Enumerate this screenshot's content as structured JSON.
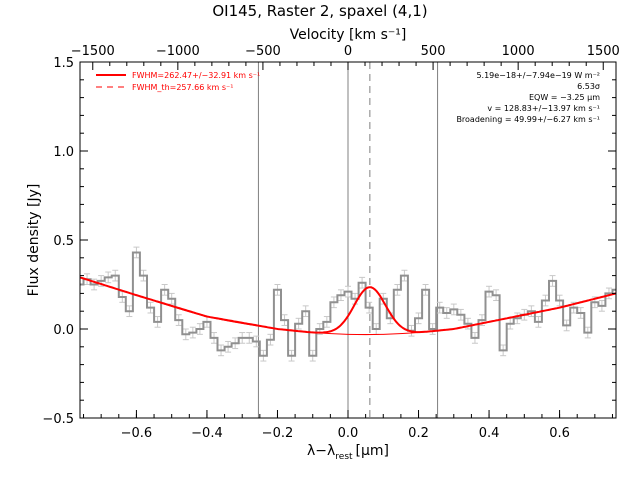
{
  "chart_data": {
    "type": "line",
    "title": "OI145, Raster 2, spaxel (4,1)",
    "xlabel": "λ−λrest [μm]",
    "xlabel_main": "λ−λ",
    "xlabel_sub": "rest",
    "xlabel_unit": "[μm]",
    "ylabel": "Flux density [Jy]",
    "top_xlabel": "Velocity [km s⁻¹]",
    "xlim": [
      -0.76,
      0.76
    ],
    "ylim": [
      -0.5,
      1.5
    ],
    "top_xlim": [
      -1575,
      1575
    ],
    "x_ticks": [
      -0.6,
      -0.4,
      -0.2,
      0.0,
      0.2,
      0.4,
      0.6
    ],
    "x_tick_labels": [
      "−0.6",
      "−0.4",
      "−0.2",
      "0.0",
      "0.2",
      "0.4",
      "0.6"
    ],
    "y_ticks": [
      -0.5,
      0.0,
      0.5,
      1.0,
      1.5
    ],
    "y_tick_labels": [
      "−0.5",
      "0.0",
      "0.5",
      "1.0",
      "1.5"
    ],
    "top_ticks": [
      -1500,
      -1000,
      -500,
      0,
      500,
      1000,
      1500
    ],
    "top_tick_labels": [
      "−1500",
      "−1000",
      "−500",
      "0",
      "500",
      "1000",
      "1500"
    ],
    "vertical_lines": [
      -0.254,
      0.0,
      0.254
    ],
    "dashed_vertical_line": 0.062,
    "legend": {
      "placement": "top-left",
      "entries": [
        "FWHM=262.47+/−32.91 km s⁻¹",
        "FWHM_th=257.66 km s⁻¹"
      ]
    },
    "annotations": [
      "5.19e−18+/−7.94e−19 W m⁻²",
      "6.53σ",
      "EQW = −3.25 μm",
      "v = 128.83+/−13.97 km s⁻¹",
      "Broadening = 49.99+/−6.27 km s⁻¹"
    ],
    "series": [
      {
        "kind": "spectrum",
        "x": [
          -0.76,
          -0.74,
          -0.72,
          -0.7,
          -0.68,
          -0.66,
          -0.64,
          -0.62,
          -0.6,
          -0.58,
          -0.56,
          -0.54,
          -0.52,
          -0.5,
          -0.48,
          -0.46,
          -0.44,
          -0.42,
          -0.4,
          -0.38,
          -0.36,
          -0.34,
          -0.32,
          -0.3,
          -0.28,
          -0.26,
          -0.24,
          -0.22,
          -0.2,
          -0.18,
          -0.16,
          -0.14,
          -0.12,
          -0.1,
          -0.08,
          -0.06,
          -0.04,
          -0.02,
          0.0,
          0.02,
          0.04,
          0.06,
          0.08,
          0.1,
          0.12,
          0.14,
          0.16,
          0.18,
          0.2,
          0.22,
          0.24,
          0.26,
          0.28,
          0.3,
          0.32,
          0.34,
          0.36,
          0.38,
          0.4,
          0.42,
          0.44,
          0.46,
          0.48,
          0.5,
          0.52,
          0.54,
          0.56,
          0.58,
          0.6,
          0.62,
          0.64,
          0.66,
          0.68,
          0.7,
          0.72,
          0.74,
          0.76
        ],
        "values": [
          0.25,
          0.28,
          0.25,
          0.27,
          0.29,
          0.3,
          0.18,
          0.1,
          0.43,
          0.3,
          0.12,
          0.04,
          0.22,
          0.17,
          0.05,
          -0.03,
          -0.02,
          0.0,
          0.04,
          -0.05,
          -0.12,
          -0.1,
          -0.08,
          -0.05,
          -0.05,
          -0.07,
          -0.15,
          -0.06,
          0.22,
          0.05,
          -0.15,
          0.03,
          0.1,
          -0.15,
          0.0,
          0.04,
          0.15,
          0.19,
          0.21,
          0.17,
          0.26,
          0.12,
          0.0,
          0.17,
          0.06,
          0.22,
          0.3,
          -0.01,
          0.06,
          0.22,
          0.0,
          0.12,
          0.09,
          0.11,
          0.08,
          0.03,
          -0.05,
          0.05,
          0.21,
          0.19,
          -0.12,
          0.03,
          0.06,
          0.08,
          0.1,
          0.04,
          0.16,
          0.27,
          0.16,
          0.02,
          0.12,
          0.09,
          -0.02,
          0.15,
          0.13,
          0.2,
          0.22
        ],
        "error": 0.03
      },
      {
        "kind": "continuum",
        "x": [
          -0.76,
          -0.6,
          -0.4,
          -0.2,
          -0.1,
          0.0,
          0.1,
          0.2,
          0.3,
          0.4,
          0.6,
          0.76
        ],
        "values": [
          0.29,
          0.19,
          0.07,
          0.0,
          -0.02,
          -0.03,
          -0.03,
          -0.02,
          0.0,
          0.04,
          0.12,
          0.2
        ]
      }
    ],
    "gaussian": {
      "center": 0.062,
      "amplitude": 0.265,
      "sigma": 0.045,
      "baseline": -0.035
    }
  },
  "colors": {
    "spectrum": "#909090",
    "fit": "#ff0000",
    "axes": "#000000",
    "vlines": "#808080",
    "errorbars": "#c8c8c8"
  }
}
